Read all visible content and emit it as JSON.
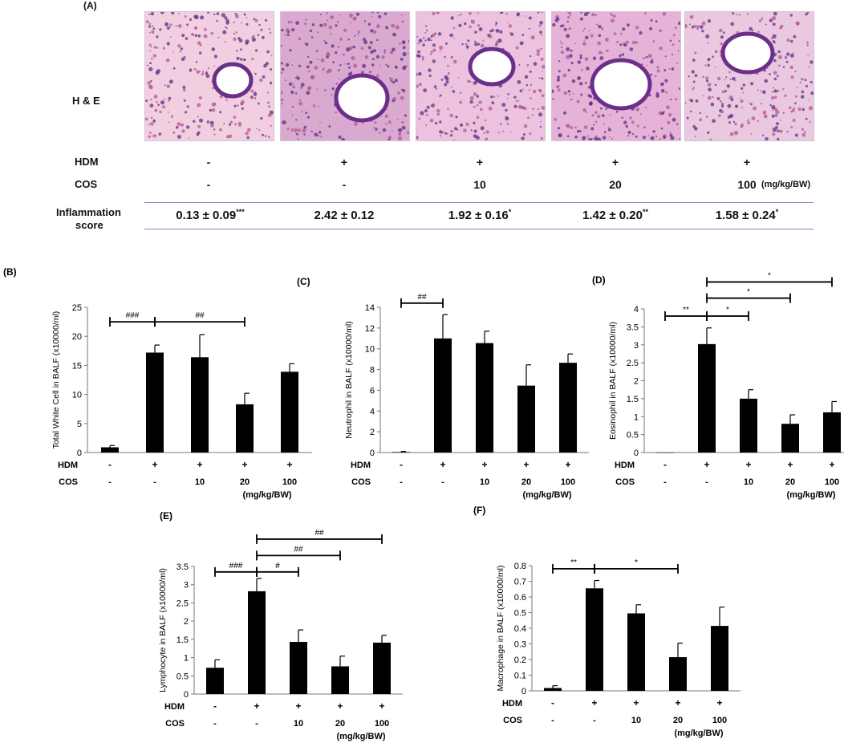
{
  "panel_a": {
    "label": "(A)",
    "row_label_he": "H & E",
    "row_label_hdm": "HDM",
    "row_label_cos": "COS",
    "hdm": [
      "-",
      "+",
      "+",
      "+",
      "+"
    ],
    "cos": [
      "-",
      "-",
      "10",
      "20",
      "100"
    ],
    "cos_unit": "(mg/kg/BW)",
    "score_label_line1": "Inflammation",
    "score_label_line2": "score",
    "scores": [
      "0.13 ± 0.09",
      "2.42 ± 0.12",
      "1.92 ± 0.16",
      "1.42 ± 0.20",
      "1.58 ± 0.24"
    ],
    "score_marks": [
      "***",
      "",
      "*",
      "**",
      "*"
    ],
    "tile_colors": [
      "#f2cfe0",
      "#d9a9d0",
      "#ecc2de",
      "#e6b3d8",
      "#e9c8e0"
    ]
  },
  "chart_data": [
    {
      "type": "bar",
      "panel": "(B)",
      "ylabel": "Total White Cell in BALF (x10000/ml)",
      "ylim": [
        0,
        25
      ],
      "yticks": [
        0,
        5,
        10,
        15,
        20,
        25
      ],
      "hdm": [
        "-",
        "+",
        "+",
        "+",
        "+"
      ],
      "cos": [
        "-",
        "-",
        "10",
        "20",
        "100"
      ],
      "unit": "(mg/kg/BW)",
      "values": [
        0.9,
        17.2,
        16.4,
        8.3,
        13.9
      ],
      "errors": [
        0.3,
        1.3,
        3.9,
        1.9,
        1.4
      ],
      "brackets": [
        {
          "from": 0,
          "to": 1,
          "level": 22.5,
          "label": "###"
        },
        {
          "from": 1,
          "to": 3,
          "level": 22.5,
          "label": "##"
        }
      ]
    },
    {
      "type": "bar",
      "panel": "(C)",
      "ylabel": "Neutrophil in BALF (x10000/ml)",
      "ylim": [
        0,
        14
      ],
      "yticks": [
        0,
        2,
        4,
        6,
        8,
        10,
        12,
        14
      ],
      "hdm": [
        "-",
        "+",
        "+",
        "+",
        "+"
      ],
      "cos": [
        "-",
        "-",
        "10",
        "20",
        "100"
      ],
      "unit": "(mg/kg/BW)",
      "values": [
        0.05,
        11.0,
        10.55,
        6.45,
        8.65
      ],
      "errors": [
        0.05,
        2.3,
        1.15,
        2.0,
        0.85
      ],
      "brackets": [
        {
          "from": 0,
          "to": 1,
          "level": 14.4,
          "label": "##"
        }
      ]
    },
    {
      "type": "bar",
      "panel": "(D)",
      "ylabel": "Eosinophil in BALF (x10000/ml)",
      "ylim": [
        0,
        4
      ],
      "yticks": [
        0,
        0.5,
        1,
        1.5,
        2,
        2.5,
        3,
        3.5,
        4
      ],
      "hdm": [
        "-",
        "+",
        "+",
        "+",
        "+"
      ],
      "cos": [
        "-",
        "-",
        "10",
        "20",
        "100"
      ],
      "unit": "(mg/kg/BW)",
      "values": [
        0,
        3.02,
        1.5,
        0.8,
        1.12
      ],
      "errors": [
        0,
        0.45,
        0.25,
        0.25,
        0.3
      ],
      "brackets": [
        {
          "from": 0,
          "to": 1,
          "level": 3.8,
          "label": "**"
        },
        {
          "from": 1,
          "to": 2,
          "level": 3.8,
          "label": "*"
        },
        {
          "from": 1,
          "to": 3,
          "level": 4.3,
          "label": "*"
        },
        {
          "from": 1,
          "to": 4,
          "level": 4.75,
          "label": "*"
        }
      ]
    },
    {
      "type": "bar",
      "panel": "(E)",
      "ylabel": "Lymphocyte in BALF (x10000/ml)",
      "ylim": [
        0,
        3.5
      ],
      "yticks": [
        0,
        0.5,
        1,
        1.5,
        2,
        2.5,
        3,
        3.5
      ],
      "hdm": [
        "-",
        "+",
        "+",
        "+",
        "+"
      ],
      "cos": [
        "-",
        "-",
        "10",
        "20",
        "100"
      ],
      "unit": "(mg/kg/BW)",
      "values": [
        0.72,
        2.82,
        1.43,
        0.76,
        1.41
      ],
      "errors": [
        0.22,
        0.35,
        0.33,
        0.28,
        0.2
      ],
      "brackets": [
        {
          "from": 0,
          "to": 1,
          "level": 3.35,
          "label": "###"
        },
        {
          "from": 1,
          "to": 2,
          "level": 3.35,
          "label": "#"
        },
        {
          "from": 1,
          "to": 3,
          "level": 3.8,
          "label": "##"
        },
        {
          "from": 1,
          "to": 4,
          "level": 4.25,
          "label": "##"
        }
      ]
    },
    {
      "type": "bar",
      "panel": "(F)",
      "ylabel": "Macrophage in BALF (x10000/ml)",
      "ylim": [
        0,
        0.8
      ],
      "yticks": [
        0,
        0.1,
        0.2,
        0.3,
        0.4,
        0.5,
        0.6,
        0.7,
        0.8
      ],
      "hdm": [
        "-",
        "+",
        "+",
        "+",
        "+"
      ],
      "cos": [
        "-",
        "-",
        "10",
        "20",
        "100"
      ],
      "unit": "(mg/kg/BW)",
      "values": [
        0.018,
        0.655,
        0.495,
        0.215,
        0.415
      ],
      "errors": [
        0.015,
        0.05,
        0.055,
        0.09,
        0.12
      ],
      "brackets": [
        {
          "from": 0,
          "to": 1,
          "level": 0.78,
          "label": "**"
        },
        {
          "from": 1,
          "to": 3,
          "level": 0.78,
          "label": "*"
        }
      ]
    }
  ]
}
